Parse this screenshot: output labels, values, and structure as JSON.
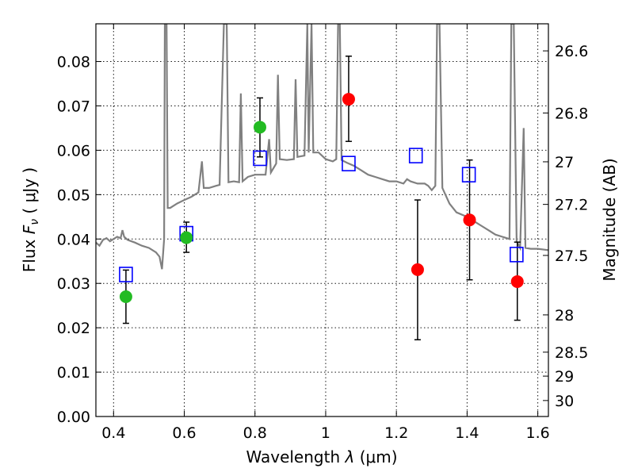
{
  "chart_data": {
    "type": "scatter",
    "xlabel_text": "Wavelength",
    "xlabel_symbol": "λ",
    "xlabel_unit": "(μm)",
    "ylabel_text": "Flux",
    "ylabel_symbol": "F",
    "ylabel_sub": "ν",
    "ylabel_unit": "( μJy )",
    "y2label": "Magnitude (AB)",
    "xlim": [
      0.35,
      1.63
    ],
    "ylim": [
      0.0,
      0.0885
    ],
    "grid": true,
    "x_ticks": [
      0.4,
      0.6,
      0.8,
      1.0,
      1.2,
      1.4,
      1.6
    ],
    "x_tick_labels": [
      "0.4",
      "0.6",
      "0.8",
      "1",
      "1.2",
      "1.4",
      "1.6"
    ],
    "y_ticks": [
      0.0,
      0.01,
      0.02,
      0.03,
      0.04,
      0.05,
      0.06,
      0.07,
      0.08
    ],
    "y_tick_labels": [
      "0.00",
      "0.01",
      "0.02",
      "0.03",
      "0.04",
      "0.05",
      "0.06",
      "0.07",
      "0.08"
    ],
    "y2_ticks": [
      {
        "flux": 0.0824,
        "label": "26.6"
      },
      {
        "flux": 0.0684,
        "label": "26.8"
      },
      {
        "flux": 0.0574,
        "label": "27"
      },
      {
        "flux": 0.0478,
        "label": "27.2"
      },
      {
        "flux": 0.0363,
        "label": "27.5"
      },
      {
        "flux": 0.0229,
        "label": "28"
      },
      {
        "flux": 0.0145,
        "label": "28.5"
      },
      {
        "flux": 0.0091,
        "label": "29"
      },
      {
        "flux": 0.0036,
        "label": "30"
      }
    ],
    "model_spectrum": {
      "color": "#808080",
      "points": [
        [
          0.35,
          0.0392
        ],
        [
          0.36,
          0.0385
        ],
        [
          0.37,
          0.0398
        ],
        [
          0.38,
          0.0402
        ],
        [
          0.39,
          0.0395
        ],
        [
          0.4,
          0.04
        ],
        [
          0.41,
          0.0405
        ],
        [
          0.42,
          0.0402
        ],
        [
          0.425,
          0.042
        ],
        [
          0.43,
          0.0405
        ],
        [
          0.44,
          0.0398
        ],
        [
          0.46,
          0.0392
        ],
        [
          0.48,
          0.0385
        ],
        [
          0.5,
          0.038
        ],
        [
          0.52,
          0.037
        ],
        [
          0.53,
          0.036
        ],
        [
          0.537,
          0.0332
        ],
        [
          0.543,
          0.04
        ],
        [
          0.545,
          0.0885
        ],
        [
          0.55,
          0.0885
        ],
        [
          0.553,
          0.047
        ],
        [
          0.56,
          0.047
        ],
        [
          0.58,
          0.048
        ],
        [
          0.6,
          0.0488
        ],
        [
          0.62,
          0.0495
        ],
        [
          0.64,
          0.0505
        ],
        [
          0.65,
          0.0575
        ],
        [
          0.655,
          0.0515
        ],
        [
          0.67,
          0.0515
        ],
        [
          0.69,
          0.052
        ],
        [
          0.7,
          0.0522
        ],
        [
          0.712,
          0.0885
        ],
        [
          0.72,
          0.0885
        ],
        [
          0.725,
          0.0528
        ],
        [
          0.74,
          0.053
        ],
        [
          0.755,
          0.0528
        ],
        [
          0.76,
          0.0728
        ],
        [
          0.765,
          0.053
        ],
        [
          0.78,
          0.054
        ],
        [
          0.8,
          0.0545
        ],
        [
          0.83,
          0.0545
        ],
        [
          0.84,
          0.0625
        ],
        [
          0.845,
          0.055
        ],
        [
          0.86,
          0.057
        ],
        [
          0.865,
          0.077
        ],
        [
          0.87,
          0.058
        ],
        [
          0.89,
          0.0578
        ],
        [
          0.91,
          0.058
        ],
        [
          0.915,
          0.076
        ],
        [
          0.92,
          0.0585
        ],
        [
          0.94,
          0.0588
        ],
        [
          0.948,
          0.0885
        ],
        [
          0.952,
          0.0595
        ],
        [
          0.96,
          0.0885
        ],
        [
          0.965,
          0.0595
        ],
        [
          0.98,
          0.0595
        ],
        [
          1.0,
          0.058
        ],
        [
          1.02,
          0.0575
        ],
        [
          1.03,
          0.058
        ],
        [
          1.035,
          0.0885
        ],
        [
          1.04,
          0.0885
        ],
        [
          1.045,
          0.0578
        ],
        [
          1.06,
          0.0572
        ],
        [
          1.08,
          0.0565
        ],
        [
          1.1,
          0.0555
        ],
        [
          1.12,
          0.0545
        ],
        [
          1.14,
          0.054
        ],
        [
          1.16,
          0.0535
        ],
        [
          1.18,
          0.053
        ],
        [
          1.2,
          0.053
        ],
        [
          1.22,
          0.0525
        ],
        [
          1.23,
          0.0535
        ],
        [
          1.24,
          0.053
        ],
        [
          1.26,
          0.0525
        ],
        [
          1.28,
          0.0525
        ],
        [
          1.29,
          0.052
        ],
        [
          1.3,
          0.051
        ],
        [
          1.31,
          0.052
        ],
        [
          1.315,
          0.0885
        ],
        [
          1.322,
          0.0885
        ],
        [
          1.33,
          0.0515
        ],
        [
          1.35,
          0.048
        ],
        [
          1.37,
          0.046
        ],
        [
          1.4,
          0.045
        ],
        [
          1.42,
          0.044
        ],
        [
          1.44,
          0.043
        ],
        [
          1.46,
          0.042
        ],
        [
          1.48,
          0.041
        ],
        [
          1.5,
          0.0405
        ],
        [
          1.52,
          0.04
        ],
        [
          1.525,
          0.0885
        ],
        [
          1.532,
          0.0885
        ],
        [
          1.54,
          0.0395
        ],
        [
          1.55,
          0.038
        ],
        [
          1.56,
          0.065
        ],
        [
          1.565,
          0.038
        ],
        [
          1.58,
          0.0378
        ],
        [
          1.6,
          0.0378
        ],
        [
          1.63,
          0.0375
        ]
      ]
    },
    "model_photometry": {
      "color": "#0000ff",
      "points": [
        {
          "x": 0.435,
          "y": 0.032
        },
        {
          "x": 0.606,
          "y": 0.0412
        },
        {
          "x": 0.814,
          "y": 0.0582
        },
        {
          "x": 1.065,
          "y": 0.057
        },
        {
          "x": 1.255,
          "y": 0.0588
        },
        {
          "x": 1.405,
          "y": 0.0545
        },
        {
          "x": 1.54,
          "y": 0.0365
        }
      ]
    },
    "observed_green": {
      "color": "#22bb22",
      "points": [
        {
          "x": 0.435,
          "y": 0.027,
          "yerr_low": 0.021,
          "yerr_high": 0.033
        },
        {
          "x": 0.606,
          "y": 0.0403,
          "yerr_low": 0.037,
          "yerr_high": 0.0438
        },
        {
          "x": 0.814,
          "y": 0.0652,
          "yerr_low": 0.0585,
          "yerr_high": 0.0718
        }
      ]
    },
    "observed_red": {
      "color": "#ff0000",
      "points": [
        {
          "x": 1.065,
          "y": 0.0715,
          "yerr_low": 0.062,
          "yerr_high": 0.0812
        },
        {
          "x": 1.26,
          "y": 0.0331,
          "yerr_low": 0.0173,
          "yerr_high": 0.0488
        },
        {
          "x": 1.407,
          "y": 0.0443,
          "yerr_low": 0.0308,
          "yerr_high": 0.0578
        },
        {
          "x": 1.542,
          "y": 0.0304,
          "yerr_low": 0.0217,
          "yerr_high": 0.0393
        }
      ]
    }
  }
}
